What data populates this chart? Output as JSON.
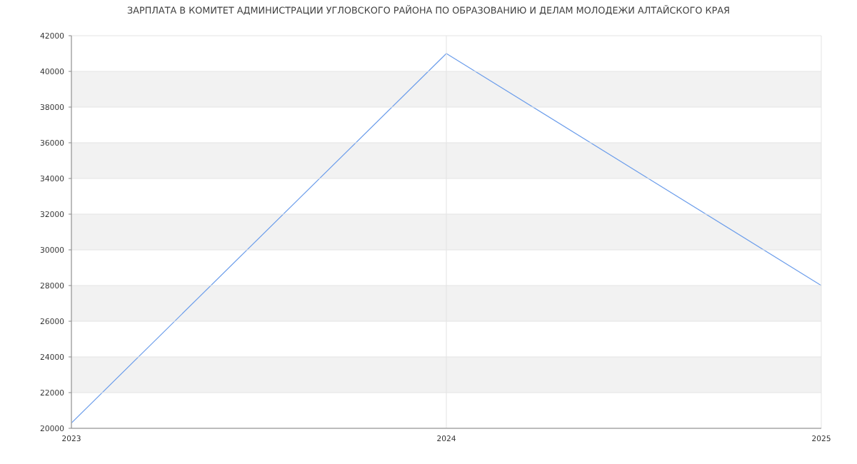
{
  "chart_data": {
    "type": "line",
    "title": "ЗАРПЛАТА В КОМИТЕТ АДМИНИСТРАЦИИ УГЛОВСКОГО РАЙОНА ПО ОБРАЗОВАНИЮ И ДЕЛАМ МОЛОДЕЖИ АЛТАЙСКОГО КРАЯ",
    "x": [
      2023,
      2024,
      2025
    ],
    "series": [
      {
        "color": "#6d9eeb",
        "values": [
          20300,
          41000,
          28000
        ]
      }
    ],
    "xlim": [
      2023,
      2025
    ],
    "ylim": [
      20000,
      42000
    ],
    "xticks": [
      2023,
      2024,
      2025
    ],
    "yticks": [
      20000,
      22000,
      24000,
      26000,
      28000,
      30000,
      32000,
      34000,
      36000,
      38000,
      40000,
      42000
    ],
    "grid": true
  }
}
